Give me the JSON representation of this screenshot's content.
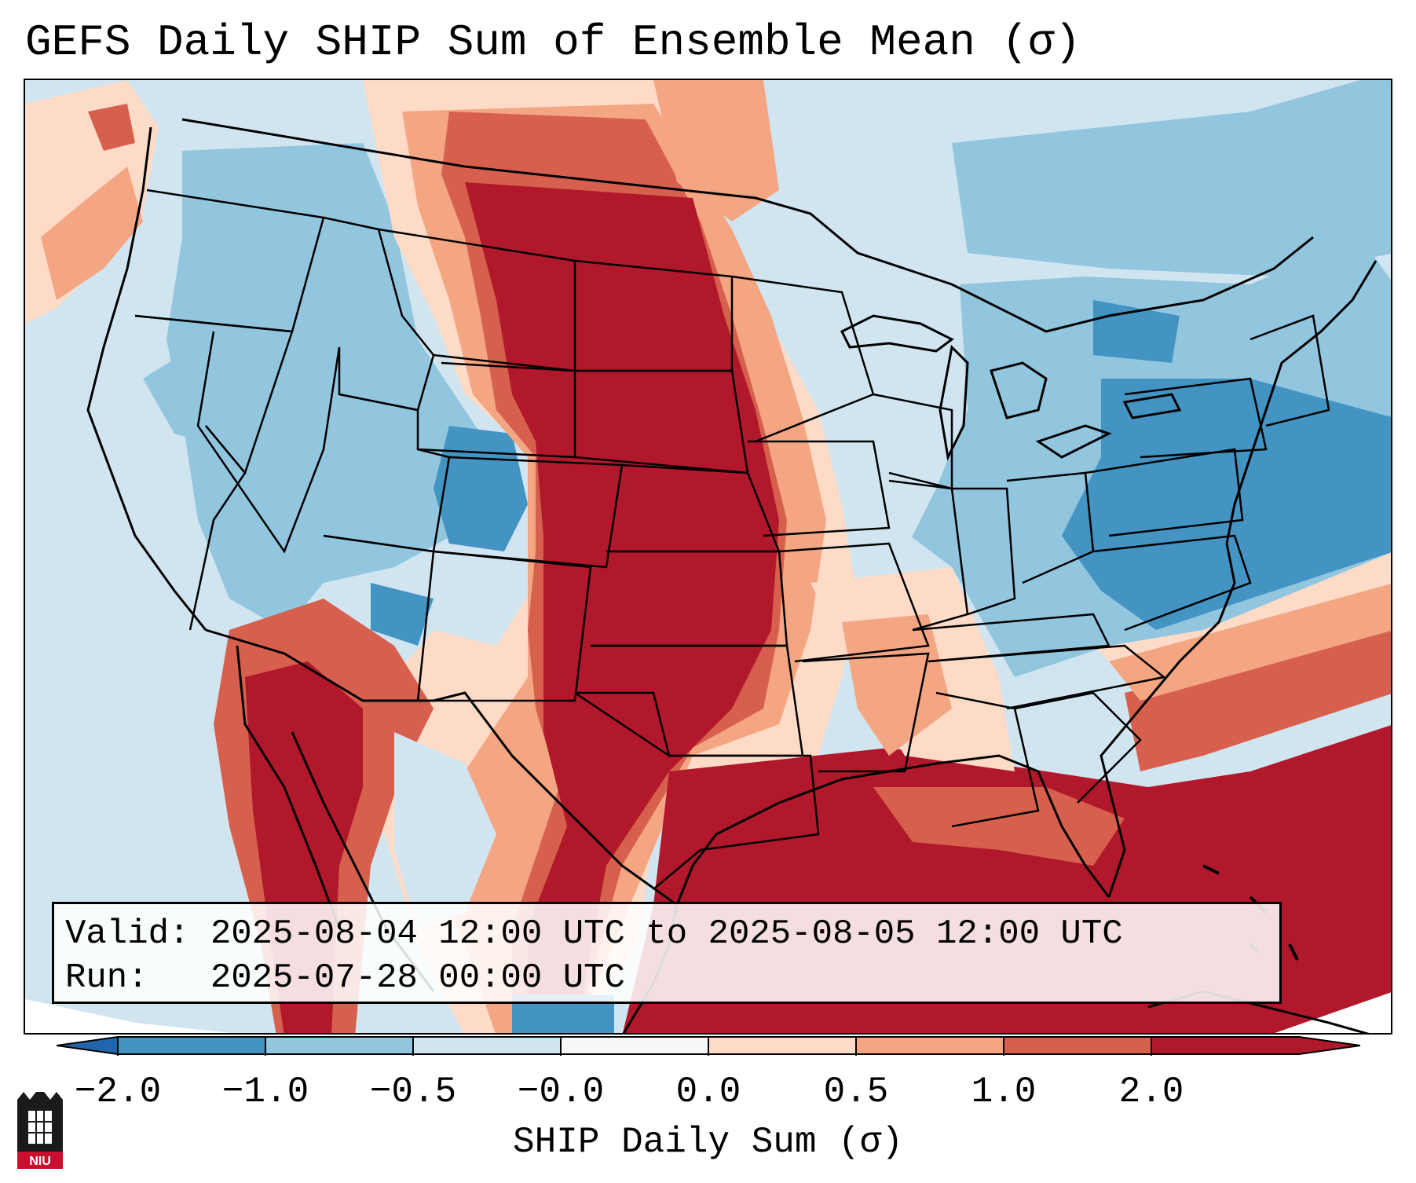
{
  "title": "GEFS Daily SHIP Sum of Ensemble Mean (σ)",
  "info": {
    "valid_label": "Valid:",
    "valid_value": "2025-08-04 12:00 UTC to 2025-08-05 12:00 UTC",
    "run_label": "Run:",
    "run_value": "2025-07-28 00:00 UTC"
  },
  "colorbar": {
    "label": "SHIP Daily Sum (σ)",
    "ticks": [
      "−2.0",
      "−1.0",
      "−0.5",
      "−0.0",
      "0.0",
      "0.5",
      "1.0",
      "2.0"
    ],
    "colors": [
      "#4393c3",
      "#92c5de",
      "#d1e5f0",
      "#f7f7f7",
      "#fddbc7",
      "#f4a582",
      "#d6604d",
      "#b2182b"
    ],
    "extend": "both"
  },
  "logo": {
    "text": "NIU"
  },
  "palette": {
    "dark_blue": "#4393c3",
    "mid_blue": "#92c5de",
    "light_blue": "#d1e5f0",
    "white": "#f7f7f7",
    "light_red": "#fddbc7",
    "mid_red": "#f4a582",
    "red": "#d6604d",
    "dark_red": "#b2182b"
  }
}
